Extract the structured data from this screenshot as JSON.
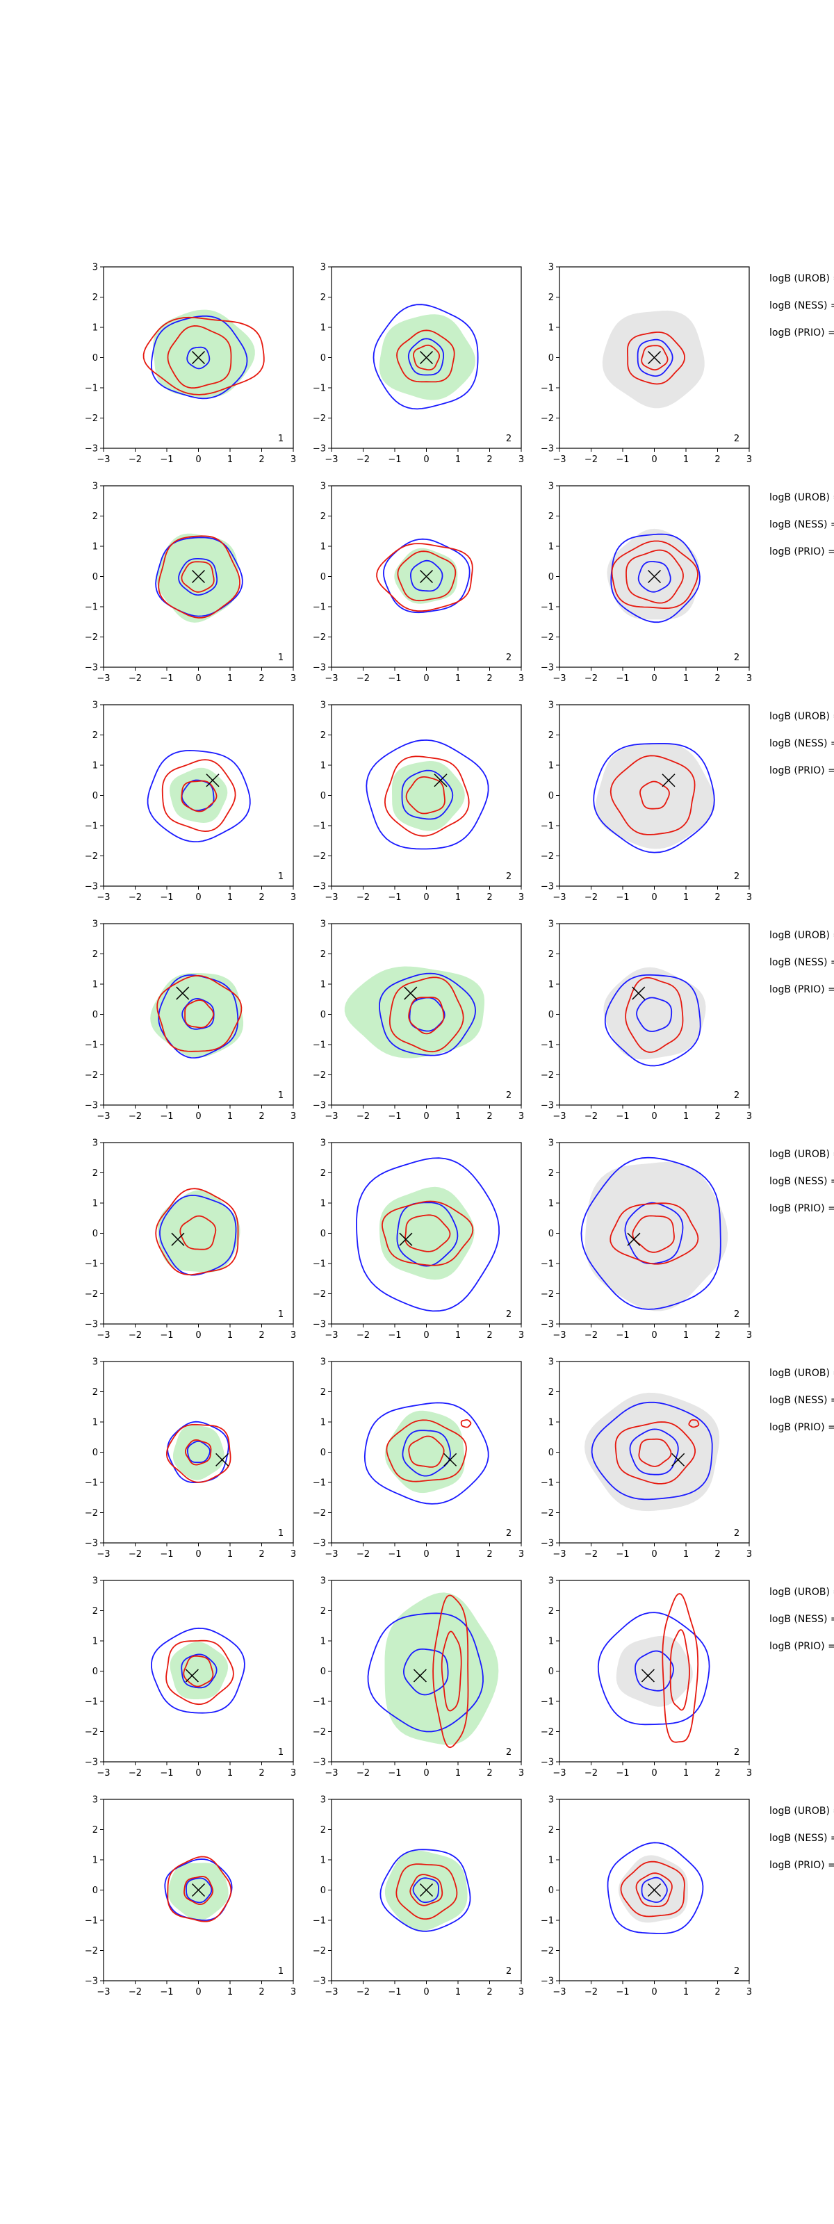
{
  "figure": {
    "row_labels": [
      "logB (UROB) =",
      "logB (NESS) =",
      "logB (PRIO) ="
    ],
    "panel_numbers": [
      "1",
      "2",
      "2"
    ]
  },
  "chart_data": {
    "type": "contour-grid",
    "rows": 8,
    "cols": 3,
    "xlim": [
      -3,
      3
    ],
    "ylim": [
      -3,
      3
    ],
    "xticks": [
      -3,
      -2,
      -1,
      0,
      1,
      2,
      3
    ],
    "yticks": [
      -3,
      -2,
      -1,
      0,
      1,
      2,
      3
    ],
    "colors": {
      "col1_fill": "#c8f0c8",
      "col2_fill": "#c8f0c8",
      "col3_fill": "#e6e6e6",
      "blue": "#1a1aff",
      "red": "#e6190f",
      "marker": "#000000"
    },
    "markers": [
      {
        "x": 0.0,
        "y": 0.0
      },
      {
        "x": 0.0,
        "y": 0.0
      },
      {
        "x": 0.45,
        "y": 0.5
      },
      {
        "x": -0.5,
        "y": 0.7
      },
      {
        "x": -0.65,
        "y": -0.2
      },
      {
        "x": 0.75,
        "y": -0.25
      },
      {
        "x": -0.2,
        "y": -0.15
      },
      {
        "x": 0.0,
        "y": 0.0
      }
    ],
    "panels": [
      [
        {
          "fill": {
            "cx": 0.1,
            "cy": 0.1,
            "rx": 1.6,
            "ry": 1.45
          },
          "blue": [
            {
              "cx": 0.0,
              "cy": 0.0,
              "rx": 1.5,
              "ry": 1.35
            },
            {
              "cx": 0.0,
              "cy": 0.0,
              "rx": 0.35,
              "ry": 0.35
            }
          ],
          "red": [
            {
              "cx": 0.2,
              "cy": 0.1,
              "rx": 1.9,
              "ry": 1.25
            },
            {
              "cx": 0.05,
              "cy": 0.0,
              "rx": 1.0,
              "ry": 1.0
            }
          ]
        },
        {
          "fill": {
            "cx": 0.0,
            "cy": 0.0,
            "rx": 1.5,
            "ry": 1.4
          },
          "blue": [
            {
              "cx": 0.0,
              "cy": 0.0,
              "rx": 1.65,
              "ry": 1.7
            },
            {
              "cx": 0.0,
              "cy": 0.0,
              "rx": 0.55,
              "ry": 0.6
            }
          ],
          "red": [
            {
              "cx": 0.0,
              "cy": 0.0,
              "rx": 0.9,
              "ry": 0.85
            },
            {
              "cx": 0.0,
              "cy": 0.0,
              "rx": 0.4,
              "ry": 0.4
            }
          ]
        },
        {
          "fill": {
            "cx": 0.0,
            "cy": 0.0,
            "rx": 1.6,
            "ry": 1.6
          },
          "blue": [
            {
              "cx": 0.0,
              "cy": 0.0,
              "rx": 0.55,
              "ry": 0.6
            }
          ],
          "red": [
            {
              "cx": 0.0,
              "cy": 0.0,
              "rx": 0.9,
              "ry": 0.85
            },
            {
              "cx": 0.0,
              "cy": 0.0,
              "rx": 0.4,
              "ry": 0.4
            }
          ]
        }
      ],
      [
        {
          "fill": {
            "cx": 0.0,
            "cy": 0.0,
            "rx": 1.3,
            "ry": 1.45
          },
          "blue": [
            {
              "cx": 0.0,
              "cy": 0.0,
              "rx": 1.35,
              "ry": 1.3
            },
            {
              "cx": 0.0,
              "cy": 0.0,
              "rx": 0.6,
              "ry": 0.6
            }
          ],
          "red": [
            {
              "cx": 0.0,
              "cy": 0.0,
              "rx": 1.25,
              "ry": 1.35
            },
            {
              "cx": 0.0,
              "cy": 0.0,
              "rx": 0.5,
              "ry": 0.5
            }
          ]
        },
        {
          "fill": {
            "cx": 0.0,
            "cy": 0.0,
            "rx": 1.0,
            "ry": 0.9
          },
          "blue": [
            {
              "cx": 0.0,
              "cy": 0.0,
              "rx": 1.35,
              "ry": 1.2
            },
            {
              "cx": 0.0,
              "cy": 0.0,
              "rx": 0.5,
              "ry": 0.5
            }
          ],
          "red": [
            {
              "cx": 0.0,
              "cy": 0.0,
              "rx": 1.5,
              "ry": 1.1
            },
            {
              "cx": 0.0,
              "cy": 0.0,
              "rx": 0.9,
              "ry": 0.8
            }
          ]
        },
        {
          "fill": {
            "cx": 0.0,
            "cy": 0.0,
            "rx": 1.45,
            "ry": 1.5
          },
          "blue": [
            {
              "cx": 0.0,
              "cy": 0.0,
              "rx": 1.4,
              "ry": 1.45
            },
            {
              "cx": 0.0,
              "cy": 0.0,
              "rx": 0.5,
              "ry": 0.5
            }
          ],
          "red": [
            {
              "cx": 0.0,
              "cy": 0.0,
              "rx": 1.35,
              "ry": 1.1
            },
            {
              "cx": 0.0,
              "cy": 0.0,
              "rx": 0.9,
              "ry": 0.85
            }
          ]
        }
      ],
      [
        {
          "fill": {
            "cx": 0.0,
            "cy": 0.0,
            "rx": 0.9,
            "ry": 0.9
          },
          "blue": [
            {
              "cx": 0.0,
              "cy": 0.0,
              "rx": 1.6,
              "ry": 1.5
            },
            {
              "cx": 0.0,
              "cy": 0.0,
              "rx": 0.5,
              "ry": 0.5
            }
          ],
          "red": [
            {
              "cx": 0.0,
              "cy": 0.0,
              "rx": 1.15,
              "ry": 1.15
            },
            {
              "cx": 0.0,
              "cy": 0.0,
              "rx": 0.55,
              "ry": 0.5
            }
          ]
        },
        {
          "fill": {
            "cx": 0.0,
            "cy": 0.0,
            "rx": 1.15,
            "ry": 1.15
          },
          "blue": [
            {
              "cx": 0.0,
              "cy": 0.0,
              "rx": 1.9,
              "ry": 1.8
            },
            {
              "cx": 0.0,
              "cy": 0.0,
              "rx": 0.8,
              "ry": 0.8
            }
          ],
          "red": [
            {
              "cx": 0.0,
              "cy": 0.0,
              "rx": 1.3,
              "ry": 1.3
            },
            {
              "cx": 0.0,
              "cy": 0.0,
              "rx": 0.6,
              "ry": 0.6
            }
          ]
        },
        {
          "fill": {
            "cx": 0.0,
            "cy": 0.0,
            "rx": 1.85,
            "ry": 1.75
          },
          "blue": [
            {
              "cx": 0.0,
              "cy": 0.0,
              "rx": 1.9,
              "ry": 1.8
            }
          ],
          "red": [
            {
              "cx": 0.0,
              "cy": 0.0,
              "rx": 1.3,
              "ry": 1.3
            },
            {
              "cx": 0.0,
              "cy": 0.0,
              "rx": 0.45,
              "ry": 0.45
            }
          ]
        }
      ],
      [
        {
          "fill": {
            "cx": 0.0,
            "cy": 0.0,
            "rx": 1.45,
            "ry": 1.4
          },
          "blue": [
            {
              "cx": 0.0,
              "cy": -0.05,
              "rx": 1.25,
              "ry": 1.35
            },
            {
              "cx": 0.0,
              "cy": 0.0,
              "rx": 0.5,
              "ry": 0.5
            }
          ],
          "red": [
            {
              "cx": 0.0,
              "cy": 0.0,
              "rx": 1.3,
              "ry": 1.25
            },
            {
              "cx": 0.0,
              "cy": 0.0,
              "rx": 0.45,
              "ry": 0.45
            }
          ]
        },
        {
          "fill": {
            "cx": -0.3,
            "cy": 0.1,
            "rx": 2.2,
            "ry": 1.5
          },
          "blue": [
            {
              "cx": 0.0,
              "cy": 0.0,
              "rx": 1.5,
              "ry": 1.35
            },
            {
              "cx": 0.0,
              "cy": 0.0,
              "rx": 0.55,
              "ry": 0.55
            }
          ],
          "red": [
            {
              "cx": 0.0,
              "cy": 0.0,
              "rx": 1.15,
              "ry": 1.2
            },
            {
              "cx": 0.0,
              "cy": 0.0,
              "rx": 0.55,
              "ry": 0.6
            }
          ]
        },
        {
          "fill": {
            "cx": 0.0,
            "cy": 0.0,
            "rx": 1.6,
            "ry": 1.5
          },
          "blue": [
            {
              "cx": 0.0,
              "cy": -0.15,
              "rx": 1.5,
              "ry": 1.5
            },
            {
              "cx": 0.0,
              "cy": 0.0,
              "rx": 0.55,
              "ry": 0.55
            }
          ],
          "red": [
            {
              "cx": 0.0,
              "cy": 0.0,
              "rx": 0.9,
              "ry": 1.2
            }
          ]
        }
      ],
      [
        {
          "fill": {
            "cx": 0.0,
            "cy": 0.0,
            "rx": 1.3,
            "ry": 1.35
          },
          "blue": [
            {
              "cx": 0.0,
              "cy": -0.05,
              "rx": 1.2,
              "ry": 1.3
            }
          ],
          "red": [
            {
              "cx": 0.0,
              "cy": 0.0,
              "rx": 1.3,
              "ry": 1.4
            },
            {
              "cx": 0.0,
              "cy": 0.0,
              "rx": 0.55,
              "ry": 0.55
            }
          ]
        },
        {
          "fill": {
            "cx": 0.0,
            "cy": 0.0,
            "rx": 1.5,
            "ry": 1.5
          },
          "blue": [
            {
              "cx": 0.0,
              "cy": 0.0,
              "rx": 2.25,
              "ry": 2.5
            },
            {
              "cx": 0.0,
              "cy": 0.0,
              "rx": 0.95,
              "ry": 1.05
            }
          ],
          "red": [
            {
              "cx": 0.0,
              "cy": 0.0,
              "rx": 1.4,
              "ry": 1.05
            },
            {
              "cx": 0.0,
              "cy": 0.0,
              "rx": 0.7,
              "ry": 0.6
            }
          ]
        },
        {
          "fill": {
            "cx": 0.0,
            "cy": 0.0,
            "rx": 2.25,
            "ry": 2.45
          },
          "blue": [
            {
              "cx": 0.0,
              "cy": 0.0,
              "rx": 2.2,
              "ry": 2.5
            },
            {
              "cx": 0.0,
              "cy": 0.0,
              "rx": 0.9,
              "ry": 1.0
            }
          ],
          "red": [
            {
              "cx": 0.0,
              "cy": 0.0,
              "rx": 1.35,
              "ry": 1.0
            },
            {
              "cx": 0.0,
              "cy": 0.0,
              "rx": 0.65,
              "ry": 0.6
            }
          ]
        }
      ],
      [
        {
          "fill": {
            "cx": 0.0,
            "cy": 0.0,
            "rx": 0.8,
            "ry": 0.9
          },
          "blue": [
            {
              "cx": 0.0,
              "cy": 0.0,
              "rx": 0.95,
              "ry": 1.0
            },
            {
              "cx": 0.0,
              "cy": 0.0,
              "rx": 0.35,
              "ry": 0.35
            }
          ],
          "red": [
            {
              "cx": 0.05,
              "cy": 0.0,
              "rx": 1.0,
              "ry": 0.95
            },
            {
              "cx": 0.0,
              "cy": 0.0,
              "rx": 0.4,
              "ry": 0.4
            }
          ]
        },
        {
          "fill": {
            "cx": 0.0,
            "cy": 0.0,
            "rx": 1.25,
            "ry": 1.35
          },
          "blue": [
            {
              "cx": 0.0,
              "cy": 0.0,
              "rx": 1.95,
              "ry": 1.65
            },
            {
              "cx": 0.0,
              "cy": 0.0,
              "rx": 0.75,
              "ry": 0.75
            }
          ],
          "red": [
            {
              "cx": 0.0,
              "cy": 0.0,
              "rx": 1.25,
              "ry": 1.0
            },
            {
              "cx": 0.0,
              "cy": 0.0,
              "rx": 0.55,
              "ry": 0.5
            },
            {
              "cx": 1.25,
              "cy": 0.95,
              "rx": 0.15,
              "ry": 0.12
            }
          ]
        },
        {
          "fill": {
            "cx": 0.0,
            "cy": 0.0,
            "rx": 2.1,
            "ry": 1.95
          },
          "blue": [
            {
              "cx": 0.0,
              "cy": 0.0,
              "rx": 1.9,
              "ry": 1.6
            },
            {
              "cx": 0.0,
              "cy": 0.0,
              "rx": 0.75,
              "ry": 0.75
            }
          ],
          "red": [
            {
              "cx": 0.0,
              "cy": 0.0,
              "rx": 1.25,
              "ry": 1.0
            },
            {
              "cx": 0.0,
              "cy": 0.0,
              "rx": 0.5,
              "ry": 0.45
            },
            {
              "cx": 1.25,
              "cy": 0.95,
              "rx": 0.15,
              "ry": 0.12
            }
          ]
        }
      ],
      [
        {
          "fill": {
            "cx": 0.0,
            "cy": 0.0,
            "rx": 0.9,
            "ry": 0.95
          },
          "blue": [
            {
              "cx": 0.0,
              "cy": 0.0,
              "rx": 1.45,
              "ry": 1.4
            },
            {
              "cx": 0.0,
              "cy": 0.0,
              "rx": 0.55,
              "ry": 0.55
            }
          ],
          "red": [
            {
              "cx": 0.0,
              "cy": 0.0,
              "rx": 1.05,
              "ry": 1.05
            },
            {
              "cx": 0.0,
              "cy": 0.0,
              "rx": 0.45,
              "ry": 0.5
            }
          ]
        },
        {
          "fill": {
            "cx": 0.4,
            "cy": 0.0,
            "rx": 1.8,
            "ry": 2.5
          },
          "blue": [
            {
              "cx": 0.0,
              "cy": 0.0,
              "rx": 1.8,
              "ry": 1.95
            },
            {
              "cx": 0.0,
              "cy": 0.0,
              "rx": 0.7,
              "ry": 0.75
            }
          ],
          "red": [
            {
              "cx": 0.8,
              "cy": 0.0,
              "rx": 0.55,
              "ry": 2.5
            },
            {
              "cx": 0.8,
              "cy": 0.0,
              "rx": 0.3,
              "ry": 1.3
            }
          ]
        },
        {
          "fill": {
            "cx": 0.0,
            "cy": 0.0,
            "rx": 1.2,
            "ry": 1.15
          },
          "blue": [
            {
              "cx": 0.0,
              "cy": 0.0,
              "rx": 1.75,
              "ry": 1.85
            },
            {
              "cx": 0.0,
              "cy": 0.0,
              "rx": 0.6,
              "ry": 0.65
            }
          ],
          "red": [
            {
              "cx": 0.8,
              "cy": 0.0,
              "rx": 0.55,
              "ry": 2.45
            },
            {
              "cx": 0.8,
              "cy": 0.0,
              "rx": 0.3,
              "ry": 1.3
            }
          ]
        }
      ],
      [
        {
          "fill": {
            "cx": 0.0,
            "cy": 0.0,
            "rx": 0.95,
            "ry": 0.95
          },
          "blue": [
            {
              "cx": 0.0,
              "cy": 0.0,
              "rx": 1.05,
              "ry": 1.0
            },
            {
              "cx": 0.0,
              "cy": 0.0,
              "rx": 0.4,
              "ry": 0.4
            }
          ],
          "red": [
            {
              "cx": 0.0,
              "cy": 0.0,
              "rx": 1.0,
              "ry": 1.05
            },
            {
              "cx": 0.0,
              "cy": 0.0,
              "rx": 0.45,
              "ry": 0.45
            }
          ]
        },
        {
          "fill": {
            "cx": 0.0,
            "cy": 0.0,
            "rx": 1.3,
            "ry": 1.3
          },
          "blue": [
            {
              "cx": 0.0,
              "cy": 0.0,
              "rx": 1.4,
              "ry": 1.35
            },
            {
              "cx": 0.0,
              "cy": 0.0,
              "rx": 0.4,
              "ry": 0.4
            }
          ],
          "red": [
            {
              "cx": 0.0,
              "cy": 0.0,
              "rx": 0.95,
              "ry": 0.9
            },
            {
              "cx": 0.0,
              "cy": 0.0,
              "rx": 0.5,
              "ry": 0.5
            }
          ]
        },
        {
          "fill": {
            "cx": 0.0,
            "cy": 0.0,
            "rx": 1.1,
            "ry": 1.1
          },
          "blue": [
            {
              "cx": 0.0,
              "cy": 0.0,
              "rx": 1.5,
              "ry": 1.5
            },
            {
              "cx": 0.0,
              "cy": 0.0,
              "rx": 0.4,
              "ry": 0.4
            }
          ],
          "red": [
            {
              "cx": 0.0,
              "cy": 0.0,
              "rx": 1.0,
              "ry": 0.9
            },
            {
              "cx": 0.0,
              "cy": 0.0,
              "rx": 0.55,
              "ry": 0.55
            }
          ]
        }
      ]
    ]
  }
}
